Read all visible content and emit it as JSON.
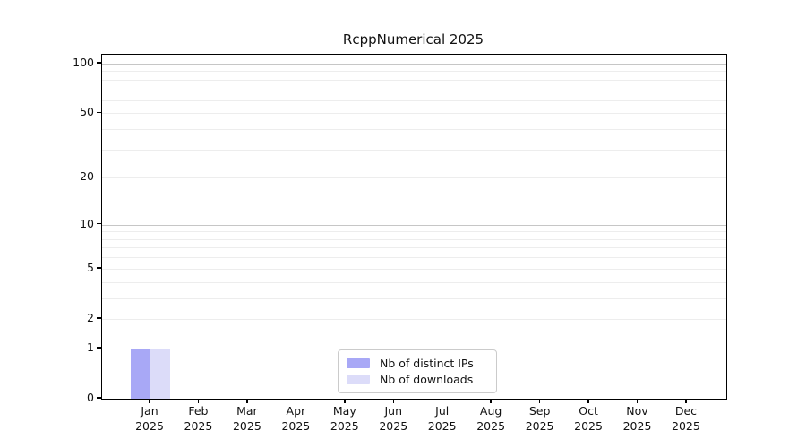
{
  "title": "RcppNumerical 2025",
  "legend": {
    "items": [
      {
        "label": "Nb of distinct IPs",
        "color": "#a8a8f6"
      },
      {
        "label": "Nb of downloads",
        "color": "#dcdcf9"
      }
    ]
  },
  "chart_data": {
    "type": "bar",
    "title": "RcppNumerical 2025",
    "categories": [
      "Jan",
      "Feb",
      "Mar",
      "Apr",
      "May",
      "Jun",
      "Jul",
      "Aug",
      "Sep",
      "Oct",
      "Nov",
      "Dec"
    ],
    "category_year": "2025",
    "series": [
      {
        "name": "Nb of distinct IPs",
        "color": "#a8a8f6",
        "values": [
          1,
          0,
          0,
          0,
          0,
          0,
          0,
          0,
          0,
          0,
          0,
          0
        ]
      },
      {
        "name": "Nb of downloads",
        "color": "#dcdcf9",
        "values": [
          1,
          0,
          0,
          0,
          0,
          0,
          0,
          0,
          0,
          0,
          0,
          0
        ]
      }
    ],
    "y_scale": "log1p",
    "y_ticks": [
      0,
      1,
      2,
      5,
      10,
      20,
      50,
      100
    ],
    "y_major_gridlines": [
      1,
      10,
      100
    ],
    "y_minor_gridlines": [
      2,
      3,
      4,
      5,
      6,
      7,
      8,
      9,
      20,
      30,
      40,
      50,
      60,
      70,
      80,
      90
    ],
    "ylim": [
      0,
      113
    ],
    "grid": true,
    "legend_position": "bottom-center"
  },
  "colors": {
    "grid_major": "#c6c6c6",
    "grid_minor": "#ededed",
    "axis": "#000000",
    "background": "#ffffff",
    "legend_border": "#cbcbcb"
  }
}
